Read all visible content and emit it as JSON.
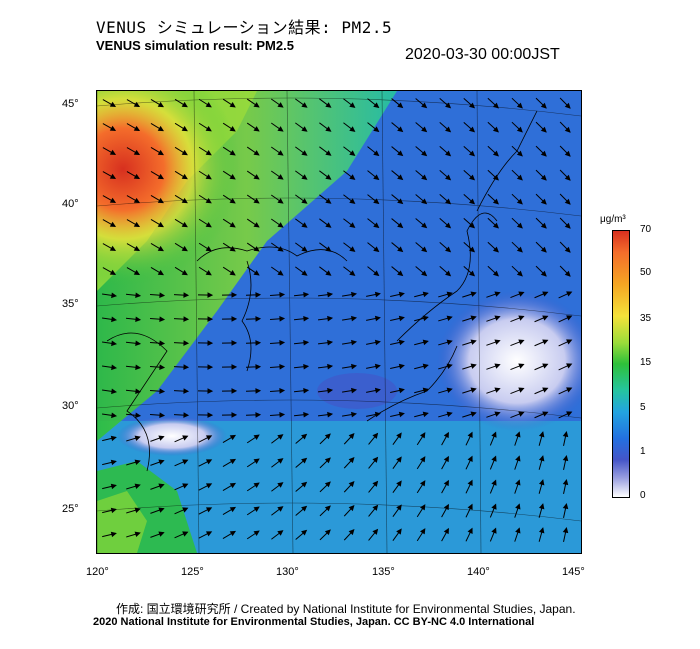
{
  "header": {
    "title_ja": "VENUS シミュレーション結果: PM2.5",
    "title_en": "VENUS simulation result: PM2.5",
    "timestamp": "2020-03-30 00:00JST"
  },
  "map": {
    "lat_labels": [
      "45°",
      "40°",
      "35°",
      "30°",
      "25°"
    ],
    "lon_labels": [
      "120°",
      "125°",
      "130°",
      "135°",
      "140°",
      "145°"
    ]
  },
  "colorbar": {
    "unit": "μg/m³",
    "ticks": [
      "70",
      "50",
      "35",
      "15",
      "5",
      "1",
      "0"
    ],
    "colors": {
      "very_high": "#d7301f",
      "high": "#f5a623",
      "mid": "#2ec03a",
      "low": "#23a4e0",
      "very_low": "#4455c8",
      "zero": "#ffffff"
    }
  },
  "footer": {
    "credit_ja": "作成: 国立環境研究所 / Created by National Institute for Environmental Studies, Japan.",
    "copyright": "2020 National Institute for Environmental Studies, Japan. CC BY-NC 4.0 International"
  }
}
